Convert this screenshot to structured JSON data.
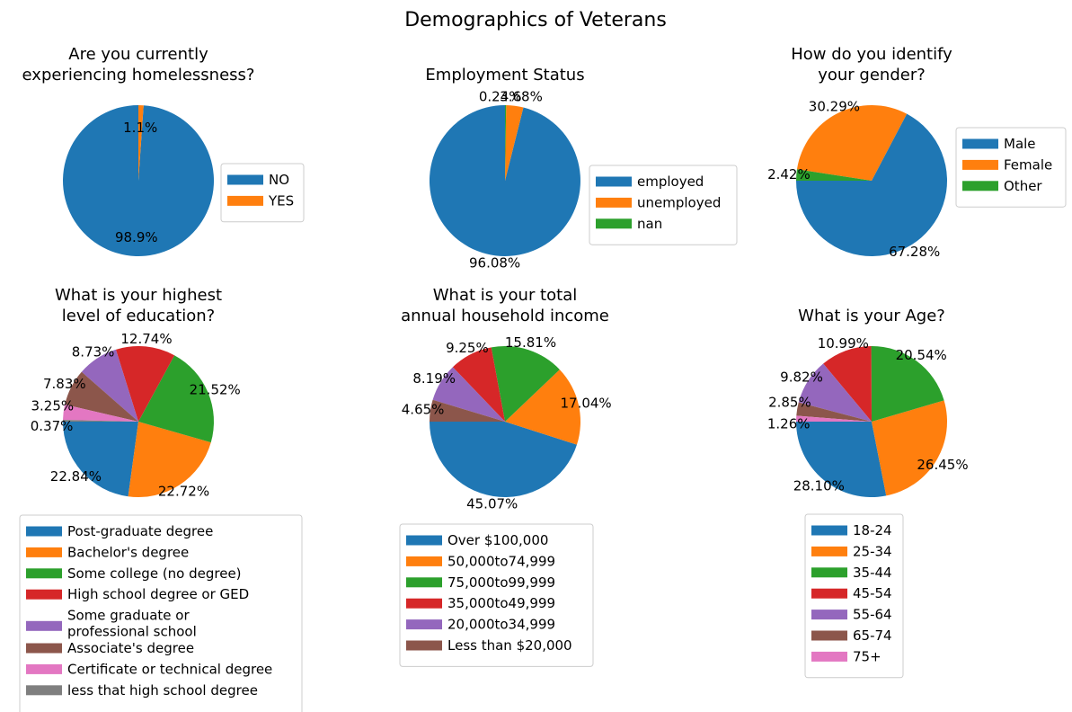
{
  "title": "Demographics of Veterans",
  "chart_data": [
    {
      "type": "pie",
      "title": "Are you currently experiencing homelessness?",
      "title_lines": [
        "Are you currently",
        "experiencing homelessness?"
      ],
      "labels": [
        "NO",
        "YES"
      ],
      "values": [
        98.9,
        1.1
      ],
      "pct_labels": [
        "98.9%",
        "1.1%"
      ],
      "colors": [
        "#1f77b4",
        "#ff7f0e"
      ],
      "legend": "right"
    },
    {
      "type": "pie",
      "title": "Employment Status",
      "title_lines": [
        "Employment Status"
      ],
      "labels": [
        "employed",
        "unemployed",
        "nan"
      ],
      "values": [
        96.08,
        3.68,
        0.24
      ],
      "pct_labels": [
        "96.08%",
        "3.68%",
        "0.24%"
      ],
      "colors": [
        "#1f77b4",
        "#ff7f0e",
        "#2ca02c"
      ],
      "legend": "right"
    },
    {
      "type": "pie",
      "title": "How do you identify your gender?",
      "title_lines": [
        "How do you identify",
        "your gender?"
      ],
      "labels": [
        "Male",
        "Female",
        "Other"
      ],
      "values": [
        67.28,
        30.29,
        2.42
      ],
      "pct_labels": [
        "67.28%",
        "30.29%",
        "2.42%"
      ],
      "colors": [
        "#1f77b4",
        "#ff7f0e",
        "#2ca02c"
      ],
      "legend": "right"
    },
    {
      "type": "pie",
      "title": "What is your highest level of education?",
      "title_lines": [
        "What is your highest",
        "level of education?"
      ],
      "labels": [
        "Post-graduate degree",
        "Bachelor's degree",
        "Some college (no degree)",
        "High school degree or GED",
        "Some graduate or professional school",
        "Associate's degree",
        "Certificate or technical degree",
        "less that high school degree"
      ],
      "values": [
        22.84,
        22.72,
        21.52,
        12.74,
        8.73,
        7.83,
        3.25,
        0.37
      ],
      "pct_labels": [
        "22.84%",
        "22.72%",
        "21.52%",
        "12.74%",
        "8.73%",
        "7.83%",
        "3.25%",
        "0.37%"
      ],
      "colors": [
        "#1f77b4",
        "#ff7f0e",
        "#2ca02c",
        "#d62728",
        "#9467bd",
        "#8c564b",
        "#e377c2",
        "#7f7f7f"
      ],
      "legend": "below"
    },
    {
      "type": "pie",
      "title": "What is your total annual household income",
      "title_lines": [
        "What is your total",
        "annual household income"
      ],
      "labels": [
        "Over $100,000",
        "50,000to74,999",
        "75,000to99,999",
        "35,000to49,999",
        "20,000to34,999",
        "Less than $20,000"
      ],
      "values": [
        45.07,
        17.04,
        15.81,
        9.25,
        8.19,
        4.65
      ],
      "pct_labels": [
        "45.07%",
        "17.04%",
        "15.81%",
        "9.25%",
        "8.19%",
        "4.65%"
      ],
      "colors": [
        "#1f77b4",
        "#ff7f0e",
        "#2ca02c",
        "#d62728",
        "#9467bd",
        "#8c564b"
      ],
      "legend": "below"
    },
    {
      "type": "pie",
      "title": "What is your Age?",
      "title_lines": [
        "What is your Age?"
      ],
      "labels": [
        "18-24",
        "25-34",
        "35-44",
        "45-54",
        "55-64",
        "65-74",
        "75+"
      ],
      "values": [
        28.1,
        26.45,
        20.54,
        10.99,
        9.82,
        2.85,
        1.26
      ],
      "pct_labels": [
        "28.10%",
        "26.45%",
        "20.54%",
        "10.99%",
        "9.82%",
        "2.85%",
        "1.26%"
      ],
      "colors": [
        "#1f77b4",
        "#ff7f0e",
        "#2ca02c",
        "#d62728",
        "#9467bd",
        "#8c564b",
        "#e377c2"
      ],
      "legend": "below"
    }
  ]
}
